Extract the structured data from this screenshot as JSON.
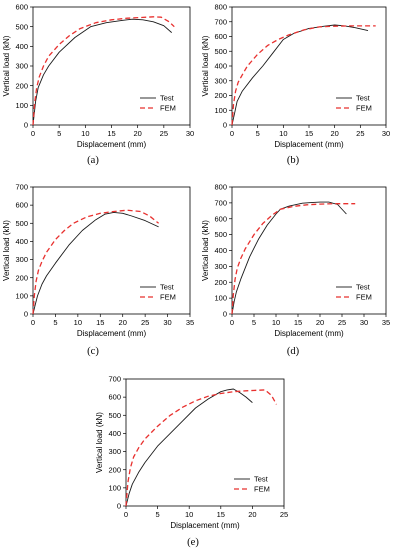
{
  "figure": {
    "background": "#ffffff"
  },
  "style": {
    "test_color": "#1a1a1a",
    "fem_color": "#e8312f",
    "axis_color": "#000000"
  },
  "chart_data": [
    {
      "id": "a",
      "type": "line",
      "caption": "(a)",
      "xlabel": "Displacement (mm)",
      "ylabel": "Vertical load (kN)",
      "xlim": [
        0,
        30
      ],
      "ylim": [
        0,
        600
      ],
      "xticks": [
        0,
        5,
        10,
        15,
        20,
        25,
        30
      ],
      "yticks": [
        0,
        100,
        200,
        300,
        400,
        500,
        600
      ],
      "legend_position": "bottom-right",
      "series": [
        {
          "name": "Test",
          "style": "solid",
          "x": [
            0,
            0.5,
            1,
            2,
            3,
            5,
            8,
            11,
            14,
            17,
            19,
            21,
            23,
            25,
            26.5
          ],
          "y": [
            0,
            120,
            190,
            255,
            300,
            370,
            445,
            500,
            520,
            532,
            538,
            535,
            525,
            505,
            470
          ]
        },
        {
          "name": "FEM",
          "style": "dashed",
          "x": [
            0,
            0.3,
            0.7,
            1.2,
            2,
            3,
            5,
            7,
            9,
            12,
            15,
            18,
            21,
            23,
            24.5,
            26,
            27
          ],
          "y": [
            0,
            110,
            190,
            245,
            300,
            350,
            410,
            455,
            490,
            520,
            535,
            543,
            547,
            550,
            548,
            525,
            500
          ]
        }
      ]
    },
    {
      "id": "b",
      "type": "line",
      "caption": "(b)",
      "xlabel": "Displacement (mm)",
      "ylabel": "Vertical load (kN)",
      "xlim": [
        0,
        30
      ],
      "ylim": [
        0,
        800
      ],
      "xticks": [
        0,
        5,
        10,
        15,
        20,
        25,
        30
      ],
      "yticks": [
        0,
        100,
        200,
        300,
        400,
        500,
        600,
        700,
        800
      ],
      "legend_position": "bottom-right",
      "series": [
        {
          "name": "Test",
          "style": "solid",
          "x": [
            0,
            0.5,
            1,
            2,
            4,
            6,
            8,
            10,
            12,
            15,
            18,
            20,
            22,
            24,
            26.5
          ],
          "y": [
            0,
            80,
            160,
            230,
            320,
            400,
            490,
            580,
            620,
            655,
            670,
            678,
            672,
            660,
            640
          ]
        },
        {
          "name": "FEM",
          "style": "dashed",
          "x": [
            0,
            0.3,
            0.7,
            1.2,
            2,
            3,
            5,
            7,
            9,
            11,
            14,
            17,
            20,
            23,
            26,
            28
          ],
          "y": [
            0,
            140,
            230,
            290,
            340,
            400,
            480,
            540,
            580,
            610,
            645,
            665,
            670,
            672,
            672,
            672
          ]
        }
      ]
    },
    {
      "id": "c",
      "type": "line",
      "caption": "(c)",
      "xlabel": "Displacement (mm)",
      "ylabel": "Vertical load (kN)",
      "xlim": [
        0,
        35
      ],
      "ylim": [
        0,
        700
      ],
      "xticks": [
        0,
        5,
        10,
        15,
        20,
        25,
        30,
        35
      ],
      "yticks": [
        0,
        100,
        200,
        300,
        400,
        500,
        600,
        700
      ],
      "legend_position": "bottom-right",
      "series": [
        {
          "name": "Test",
          "style": "solid",
          "x": [
            0,
            0.5,
            1,
            2,
            3,
            5,
            8,
            11,
            14,
            16,
            18,
            20,
            22,
            25,
            28
          ],
          "y": [
            0,
            50,
            100,
            165,
            210,
            280,
            380,
            460,
            520,
            550,
            560,
            555,
            540,
            515,
            480
          ]
        },
        {
          "name": "FEM",
          "style": "dashed",
          "x": [
            0,
            0.3,
            0.7,
            1.2,
            2,
            3,
            5,
            7,
            9,
            12,
            15,
            18,
            21,
            24,
            26,
            28
          ],
          "y": [
            0,
            100,
            180,
            240,
            290,
            340,
            410,
            460,
            500,
            535,
            555,
            565,
            572,
            565,
            540,
            500
          ]
        }
      ]
    },
    {
      "id": "d",
      "type": "line",
      "caption": "(d)",
      "xlabel": "Displacement (mm)",
      "ylabel": "Vertical load (kN)",
      "xlim": [
        0,
        35
      ],
      "ylim": [
        0,
        800
      ],
      "xticks": [
        0,
        5,
        10,
        15,
        20,
        25,
        30,
        35
      ],
      "yticks": [
        0,
        100,
        200,
        300,
        400,
        500,
        600,
        700,
        800
      ],
      "legend_position": "bottom-right",
      "series": [
        {
          "name": "Test",
          "style": "solid",
          "x": [
            0,
            0.5,
            1,
            2,
            4,
            6,
            8,
            10,
            11,
            13,
            16,
            18,
            20,
            22,
            24,
            26
          ],
          "y": [
            0,
            80,
            140,
            220,
            360,
            470,
            560,
            630,
            660,
            680,
            698,
            702,
            705,
            705,
            690,
            630
          ]
        },
        {
          "name": "FEM",
          "style": "dashed",
          "x": [
            0,
            0.3,
            0.7,
            1.2,
            2,
            3,
            5,
            7,
            9,
            11,
            14,
            17,
            20,
            23,
            26,
            28
          ],
          "y": [
            0,
            120,
            220,
            290,
            350,
            410,
            500,
            570,
            620,
            660,
            678,
            688,
            692,
            695,
            695,
            695
          ]
        }
      ]
    },
    {
      "id": "e",
      "type": "line",
      "caption": "(e)",
      "xlabel": "Displacement (mm)",
      "ylabel": "Vertical load (kN)",
      "xlim": [
        0,
        25
      ],
      "ylim": [
        0,
        700
      ],
      "xticks": [
        0,
        5,
        10,
        15,
        20,
        25
      ],
      "yticks": [
        0,
        100,
        200,
        300,
        400,
        500,
        600,
        700
      ],
      "legend_position": "bottom-right",
      "series": [
        {
          "name": "Test",
          "style": "solid",
          "x": [
            0,
            0.5,
            1,
            2,
            3,
            5,
            7,
            9,
            11,
            13,
            15,
            16,
            17,
            18,
            19,
            20
          ],
          "y": [
            0,
            70,
            120,
            185,
            240,
            330,
            400,
            470,
            540,
            590,
            630,
            640,
            645,
            625,
            600,
            570
          ]
        },
        {
          "name": "FEM",
          "style": "dashed",
          "x": [
            0,
            0.3,
            0.7,
            1.2,
            2,
            3,
            5,
            7,
            9,
            11,
            13,
            15,
            17,
            19,
            21,
            22,
            23,
            23.8
          ],
          "y": [
            0,
            130,
            210,
            270,
            320,
            370,
            440,
            500,
            545,
            580,
            605,
            620,
            630,
            635,
            638,
            640,
            610,
            560
          ]
        }
      ]
    }
  ]
}
